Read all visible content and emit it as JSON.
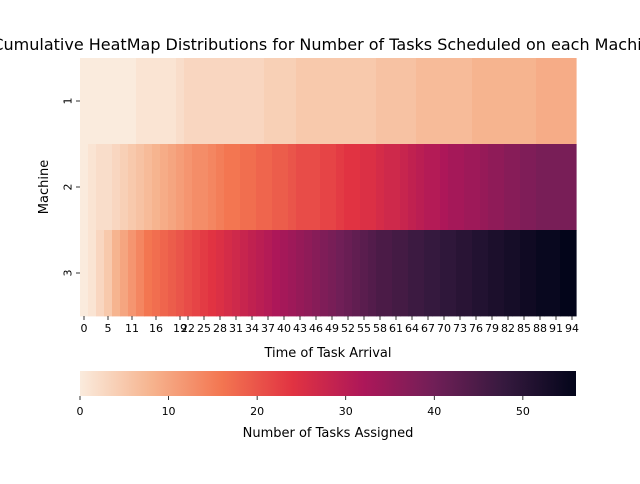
{
  "chart_data": {
    "type": "heatmap",
    "title": "Cumulative HeatMap Distributions for Number of Tasks Scheduled on each Machine",
    "xlabel": "Time of Task Arrival",
    "ylabel": "Machine",
    "rows": [
      "1",
      "2",
      "3"
    ],
    "x_tick_labels": [
      "0",
      "5",
      "11",
      "16",
      "19",
      "22",
      "25",
      "28",
      "31",
      "34",
      "37",
      "40",
      "43",
      "46",
      "49",
      "52",
      "55",
      "58",
      "61",
      "64",
      "67",
      "70",
      "73",
      "76",
      "79",
      "82",
      "85",
      "88",
      "91",
      "94"
    ],
    "x_tick_indices": [
      0,
      3,
      6,
      9,
      12,
      13,
      15,
      17,
      19,
      21,
      23,
      25,
      27,
      29,
      31,
      33,
      35,
      37,
      39,
      41,
      43,
      45,
      47,
      49,
      51,
      53,
      55,
      57,
      59,
      61
    ],
    "num_columns": 62,
    "values": [
      [
        0,
        0,
        0,
        0,
        0,
        0,
        0,
        1,
        1,
        1,
        1,
        1,
        2,
        3,
        3,
        3,
        3,
        3,
        3,
        3,
        3,
        3,
        3,
        4,
        4,
        4,
        4,
        5,
        5,
        5,
        5,
        5,
        5,
        5,
        5,
        5,
        5,
        6,
        6,
        6,
        6,
        6,
        7,
        7,
        7,
        7,
        7,
        7,
        7,
        8,
        8,
        8,
        8,
        8,
        8,
        8,
        8,
        9,
        9,
        9,
        9,
        9
      ],
      [
        0,
        1,
        2,
        2,
        3,
        4,
        5,
        6,
        7,
        8,
        9,
        10,
        11,
        12,
        13,
        13,
        14,
        15,
        16,
        16,
        17,
        17,
        18,
        18,
        19,
        19,
        20,
        21,
        21,
        21,
        22,
        22,
        23,
        24,
        24,
        25,
        25,
        26,
        27,
        27,
        28,
        29,
        30,
        31,
        31,
        32,
        33,
        33,
        34,
        34,
        35,
        36,
        36,
        37,
        37,
        38,
        38,
        39,
        39,
        39,
        39,
        39
      ],
      [
        0,
        1,
        3,
        5,
        8,
        10,
        12,
        14,
        16,
        17,
        18,
        19,
        20,
        21,
        22,
        23,
        24,
        25,
        26,
        27,
        28,
        29,
        30,
        31,
        32,
        33,
        34,
        35,
        36,
        37,
        38,
        39,
        40,
        41,
        42,
        43,
        44,
        45,
        45,
        46,
        46,
        47,
        47,
        48,
        48,
        49,
        49,
        50,
        50,
        51,
        51,
        52,
        52,
        53,
        53,
        54,
        54,
        55,
        55,
        55,
        56,
        56
      ]
    ],
    "colorbar": {
      "label": "Number of Tasks Assigned",
      "vmin": 0,
      "vmax": 56,
      "ticks": [
        0,
        10,
        20,
        30,
        40,
        50
      ],
      "colormap": "rocket_r",
      "stops": [
        "#faebdd",
        "#f6b48f",
        "#f37651",
        "#e13342",
        "#ad1759",
        "#701f57",
        "#35193e",
        "#03051a"
      ]
    }
  }
}
